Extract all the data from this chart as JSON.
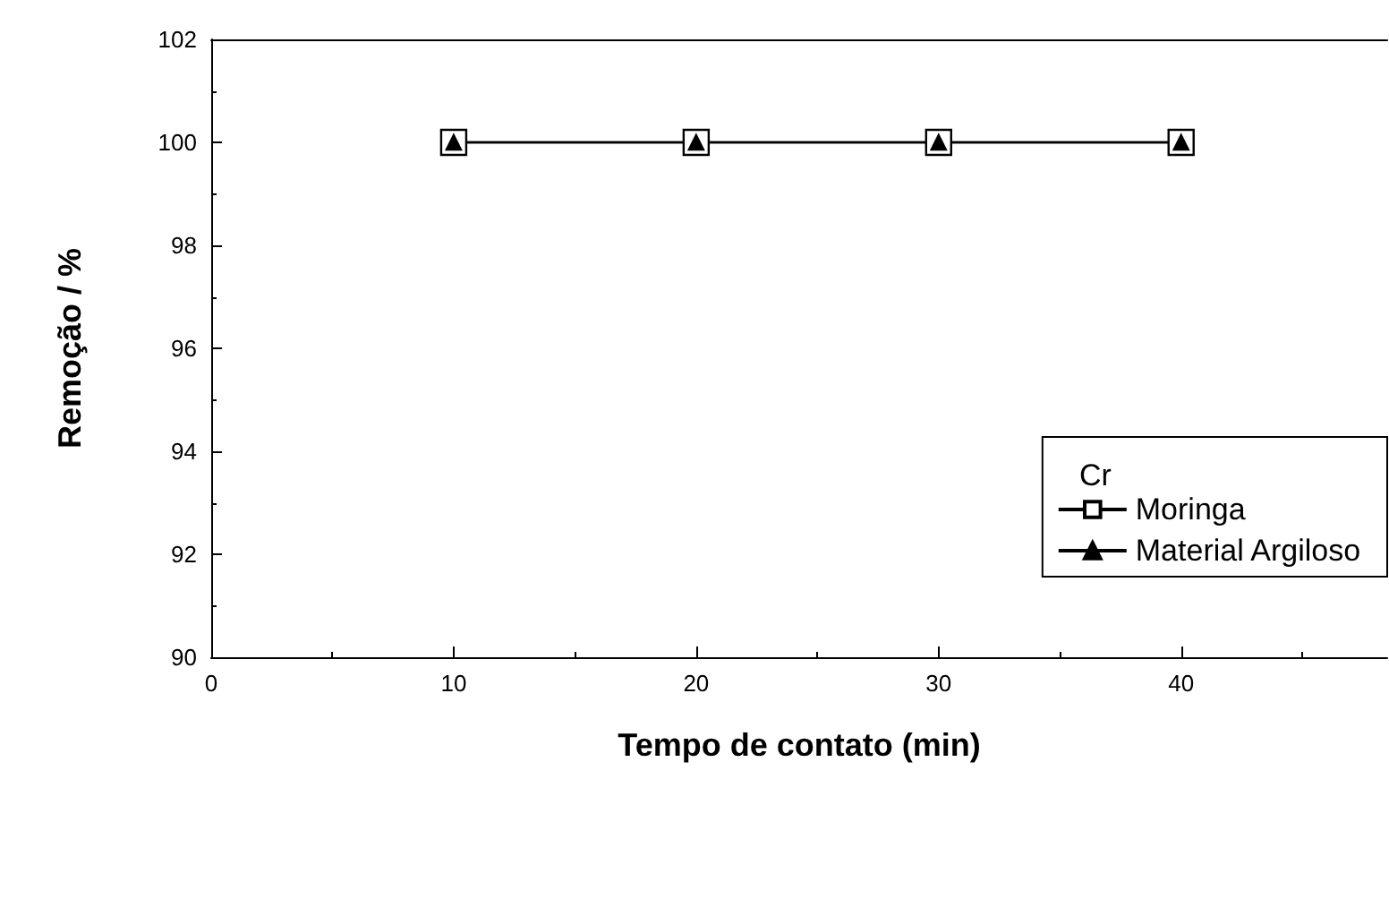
{
  "chart_data": {
    "type": "line",
    "xlabel": "Tempo de contato (min)",
    "ylabel": "Remoção / %",
    "legend_title": "Cr",
    "x": [
      10,
      20,
      30,
      40
    ],
    "series": [
      {
        "name": "Moringa",
        "color": "#000000",
        "values": [
          100,
          100,
          100,
          100
        ],
        "marker": "square"
      },
      {
        "name": "Material Argiloso",
        "color": "#000000",
        "values": [
          100,
          100,
          100,
          100
        ],
        "marker": "triangle"
      }
    ],
    "xlim": [
      0,
      48.5
    ],
    "xticks": [
      0,
      10,
      20,
      30,
      40
    ],
    "ylim": [
      90,
      102
    ],
    "yticks": [
      90,
      92,
      94,
      96,
      98,
      100,
      102
    ],
    "grid": false,
    "legend": "bottom right",
    "line_style": "solid"
  }
}
